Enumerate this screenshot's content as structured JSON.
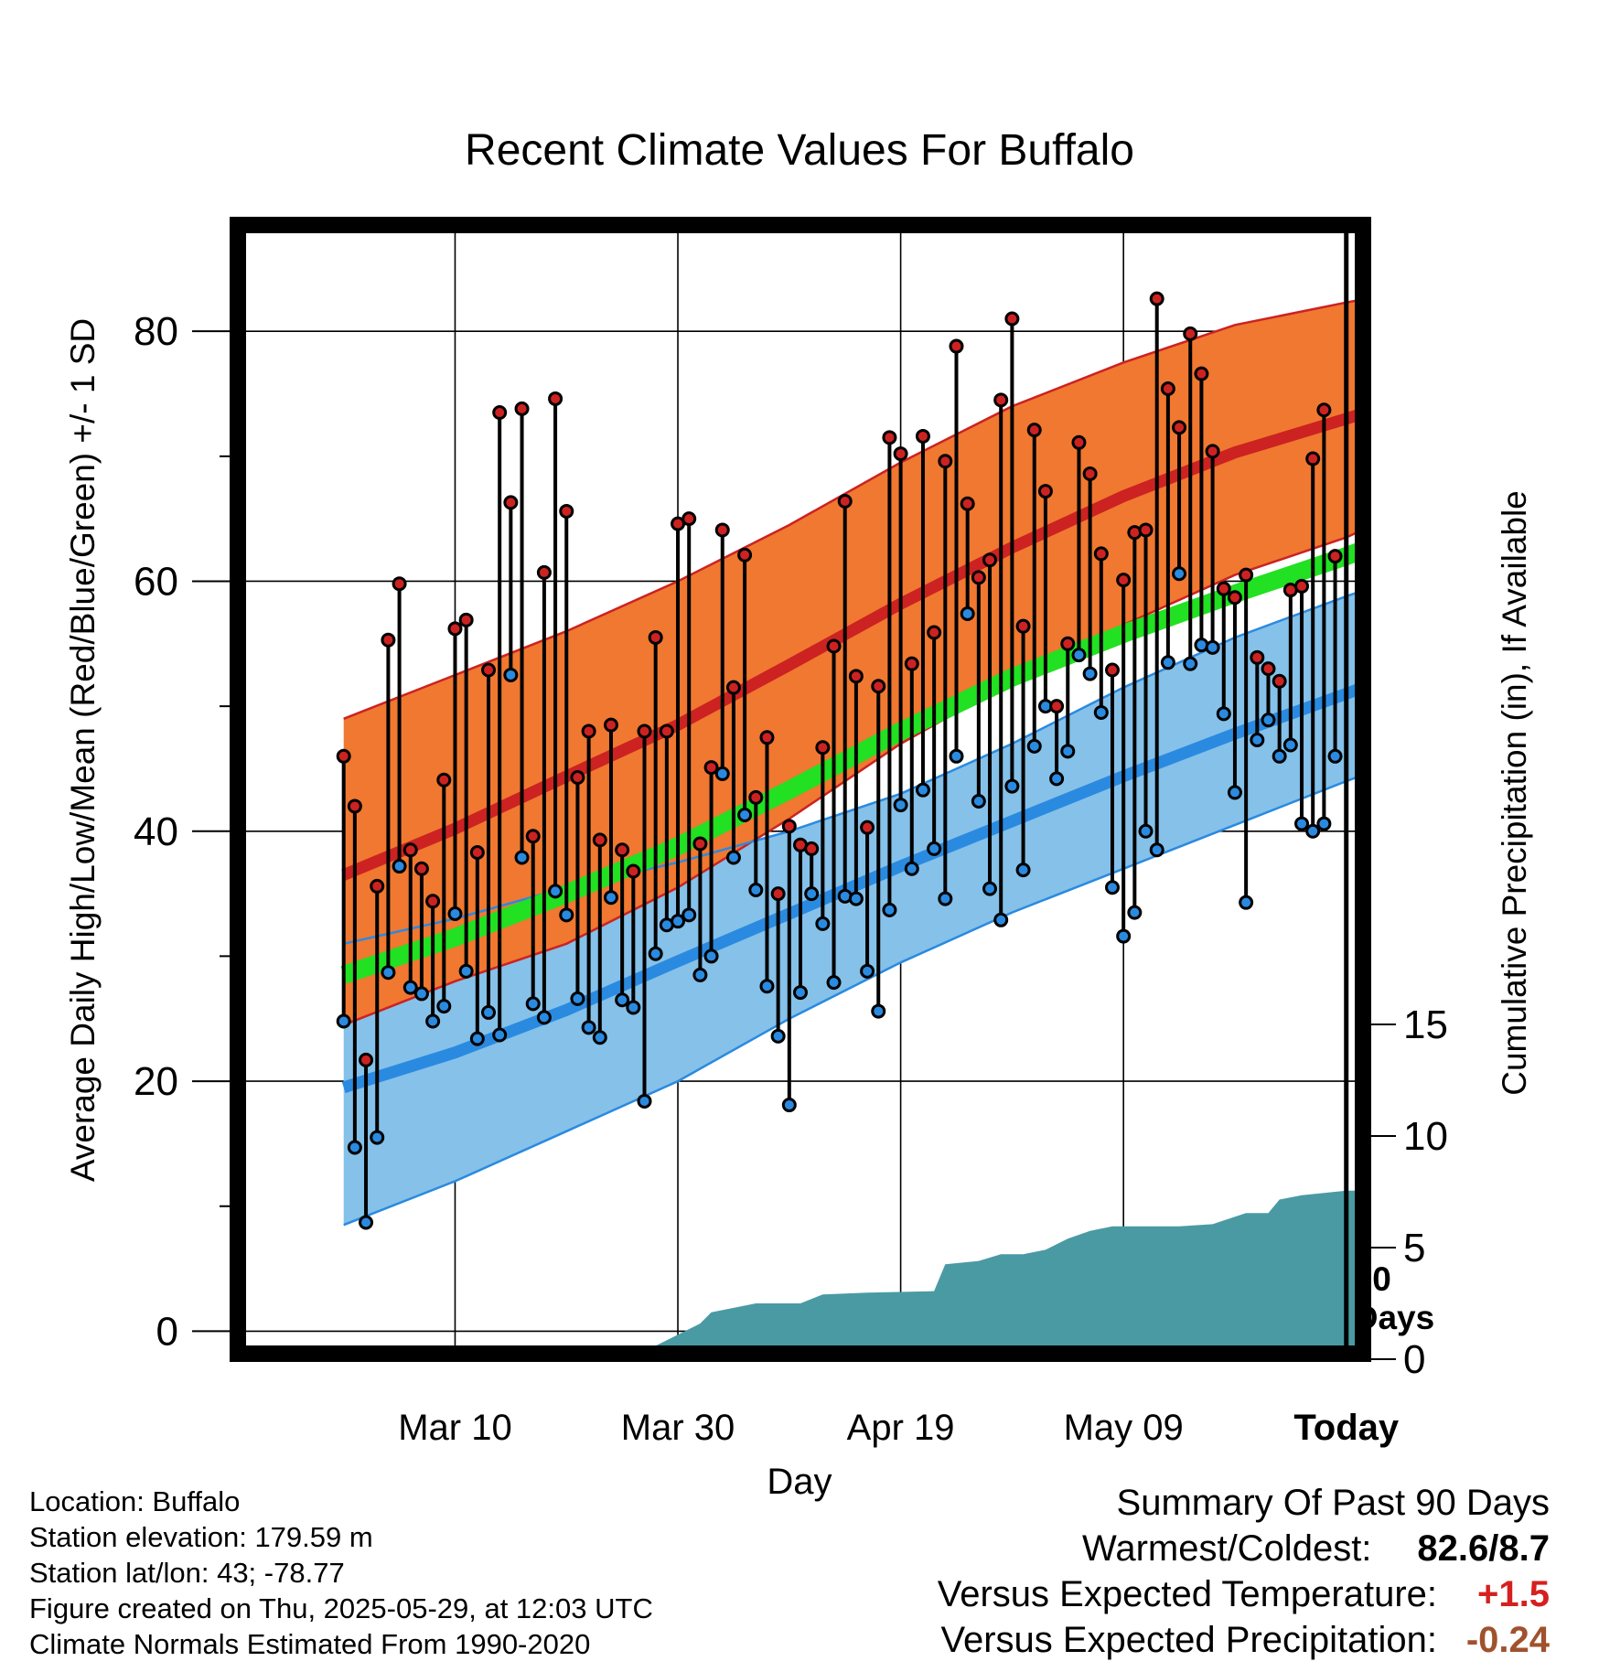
{
  "chart_data": {
    "type": "line",
    "title": "Recent Climate Values For Buffalo",
    "xlabel": "Day",
    "ylabel": "Average Daily High/Low/Mean (Red/Blue/Green) +/- 1 SD",
    "y2label": "Cumulative Precipitation (in), If Available",
    "ylim": [
      -1.8,
      88.5
    ],
    "y2lim": [
      0,
      16
    ],
    "xlim": [
      -10.5,
      90.5
    ],
    "x_unit": "days since 2025-03-01 (Today = 2025-05-29 = day 89)",
    "x_ticks": [
      {
        "day": 9,
        "label": "Mar 10"
      },
      {
        "day": 29,
        "label": "Mar 30"
      },
      {
        "day": 49,
        "label": "Apr 19"
      },
      {
        "day": 69,
        "label": "May 09"
      },
      {
        "day": 89,
        "label": "Today"
      }
    ],
    "y_ticks": [
      0,
      20,
      40,
      60,
      80
    ],
    "y2_ticks": [
      0,
      5,
      10,
      15
    ],
    "today_marker": {
      "day": 89,
      "label_line1": "90",
      "label_line2": "Days"
    },
    "normals": {
      "days": [
        -1,
        9,
        19,
        29,
        39,
        49,
        59,
        69,
        79,
        89,
        98
      ],
      "high_mean": [
        36.5,
        40.2,
        44.4,
        48.5,
        53.3,
        58.2,
        62.7,
        66.8,
        70.3,
        73.0,
        75.5
      ],
      "high_plus": [
        49.0,
        52.5,
        56.0,
        60.0,
        64.5,
        69.5,
        74.0,
        77.5,
        80.5,
        82.3,
        83.8
      ],
      "high_minus": [
        24.5,
        28.0,
        31.0,
        35.5,
        41.0,
        47.0,
        52.0,
        56.5,
        60.5,
        63.5,
        67.2
      ],
      "low_mean": [
        19.5,
        22.3,
        25.7,
        29.6,
        33.4,
        37.2,
        40.8,
        44.4,
        47.8,
        51.0,
        54.0
      ],
      "low_plus": [
        31.0,
        33.0,
        35.5,
        37.5,
        40.0,
        43.0,
        47.0,
        51.5,
        55.5,
        58.8,
        61.5
      ],
      "low_minus": [
        8.5,
        12.0,
        16.0,
        20.0,
        25.0,
        29.5,
        33.5,
        37.0,
        40.5,
        44.0,
        47.0
      ],
      "mean_mean": [
        28.5,
        31.5,
        35.0,
        38.8,
        43.3,
        48.0,
        52.3,
        55.8,
        59.0,
        62.0,
        65.0
      ]
    },
    "series": [
      {
        "name": "High",
        "color": "#cc2222",
        "start_day": -1,
        "values": [
          46.0,
          42.0,
          21.7,
          35.6,
          55.3,
          59.8,
          38.5,
          37.0,
          34.4,
          44.1,
          56.2,
          56.9,
          38.3,
          52.9,
          73.5,
          66.3,
          73.8,
          39.6,
          60.7,
          74.6,
          65.6,
          44.3,
          48.0,
          39.3,
          48.5,
          38.5,
          36.8,
          48.0,
          55.5,
          48.0,
          64.6,
          65.0,
          39.0,
          45.1,
          64.1,
          51.5,
          62.1,
          42.7,
          47.5,
          35.0,
          40.4,
          38.9,
          38.6,
          46.7,
          54.8,
          66.4,
          52.4,
          40.3,
          51.6,
          71.5,
          70.2,
          53.4,
          71.6,
          55.9,
          69.6,
          78.8,
          66.2,
          60.3,
          61.7,
          74.5,
          81.0,
          56.4,
          72.1,
          67.2,
          50.0,
          55.0,
          71.1,
          68.6,
          62.2,
          52.9,
          60.1,
          63.9,
          64.1,
          82.6,
          75.4,
          72.3,
          79.8,
          76.6,
          70.4,
          59.4,
          58.7,
          60.5,
          53.9,
          53.0,
          52.0,
          59.3,
          59.6,
          69.8,
          73.7,
          62.0
        ]
      },
      {
        "name": "Low",
        "color": "#2a8ae0",
        "start_day": -1,
        "values": [
          24.8,
          14.7,
          8.7,
          15.5,
          28.7,
          37.2,
          27.5,
          27.0,
          24.8,
          26.0,
          33.4,
          28.8,
          23.4,
          25.5,
          23.7,
          52.5,
          37.9,
          26.2,
          25.1,
          35.2,
          33.3,
          26.6,
          24.3,
          23.5,
          34.7,
          26.5,
          25.9,
          18.4,
          30.2,
          32.5,
          32.8,
          33.3,
          28.5,
          30.0,
          44.6,
          37.9,
          41.3,
          35.3,
          27.6,
          23.6,
          18.1,
          27.1,
          35.0,
          32.6,
          27.9,
          34.8,
          34.6,
          28.8,
          25.6,
          33.7,
          42.1,
          37.0,
          43.3,
          38.6,
          34.6,
          46.0,
          57.4,
          42.4,
          35.4,
          32.9,
          43.6,
          36.9,
          46.8,
          50.0,
          44.2,
          46.4,
          54.1,
          52.6,
          49.5,
          35.5,
          31.6,
          33.5,
          40.0,
          38.5,
          53.5,
          60.6,
          53.4,
          54.9,
          54.7,
          49.4,
          43.1,
          34.3,
          47.3,
          48.9,
          46.0,
          46.9,
          40.6,
          40.0,
          40.6,
          46.0
        ]
      }
    ],
    "precip": {
      "name": "Cumulative Precipitation",
      "color": "#4a9aa4",
      "days": [
        4,
        14,
        15,
        20,
        24,
        27,
        29,
        31,
        32,
        34,
        36,
        40,
        42,
        46,
        52,
        53,
        56,
        58,
        60,
        62,
        64,
        66,
        68,
        74,
        77,
        80,
        82,
        83,
        85,
        89,
        90
      ],
      "values": [
        0.05,
        0.05,
        0.45,
        0.45,
        0.6,
        0.6,
        1.1,
        1.6,
        2.1,
        2.3,
        2.5,
        2.5,
        2.9,
        2.98,
        3.05,
        4.25,
        4.4,
        4.7,
        4.7,
        4.9,
        5.4,
        5.75,
        5.95,
        5.95,
        6.05,
        6.55,
        6.55,
        7.15,
        7.35,
        7.55,
        7.55
      ]
    }
  },
  "footer": {
    "location": "Location: Buffalo",
    "elevation": "Station elevation: 179.59 m",
    "latlon": "Station lat/lon: 43; -78.77",
    "created": "Figure created on Thu, 2025-05-29, at 12:03 UTC",
    "normals": "Climate Normals Estimated From 1990-2020"
  },
  "summary": {
    "title": "Summary Of Past 90 Days",
    "warmest_label": "Warmest/Coldest:",
    "warmest_value": "82.6/8.7",
    "temp_label": "Versus Expected Temperature:",
    "temp_value": "+1.5",
    "temp_color": "#d62020",
    "precip_label": "Versus Expected Precipitation:",
    "precip_value": "-0.24",
    "precip_color": "#a0522d"
  }
}
